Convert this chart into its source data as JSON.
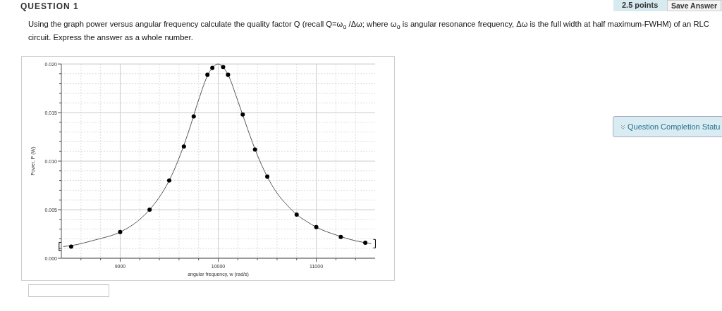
{
  "chart_data": {
    "type": "scatter",
    "title": "Using the graph power versus angular frequency calculate the quality factor Q (recall Q=ω$_{o}$ /Δω; where ω$_{o}$ is angular resonance  frequency, Δω is the full width at half maximum-FWHM) of an RLC circuit. Express the answer as a whole number.",
    "annotations": [
      "QUESTION 1",
      "2.5 points",
      "Save Answer",
      "Question Completion Statu"
    ],
    "xlabel": "angular frequency, w (rad/s)",
    "ylabel": "Power, P (W)",
    "xlim": [
      8400,
      11600
    ],
    "xticks": [
      {
        "value": 8600,
        "label": null
      },
      {
        "value": 8800,
        "label": null
      },
      9000,
      {
        "value": 9200,
        "label": null
      },
      {
        "value": 9400,
        "label": null
      },
      {
        "value": 9600,
        "label": null
      },
      {
        "value": 9800,
        "label": null
      },
      10000,
      {
        "value": 10200,
        "label": null
      },
      {
        "value": 10400,
        "label": null
      },
      {
        "value": 10600,
        "label": null
      },
      {
        "value": 10800,
        "label": null
      },
      11000,
      {
        "value": 11200,
        "label": null
      },
      {
        "value": 11400,
        "label": null
      }
    ],
    "ylim": [
      0,
      0.02
    ],
    "yticks": [
      {
        "value": 0,
        "label": "0.000"
      },
      {
        "value": 0.001,
        "label": null
      },
      {
        "value": 0.002,
        "label": null
      },
      {
        "value": 0.003,
        "label": null
      },
      {
        "value": 0.004,
        "label": null
      },
      {
        "value": 0.005,
        "label": "0.005"
      },
      {
        "value": 0.006,
        "label": null
      },
      {
        "value": 0.007,
        "label": null
      },
      {
        "value": 0.008,
        "label": null
      },
      {
        "value": 0.009,
        "label": null
      },
      {
        "value": 0.01,
        "label": "0.010"
      },
      {
        "value": 0.011,
        "label": null
      },
      {
        "value": 0.012,
        "label": null
      },
      {
        "value": 0.013,
        "label": null
      },
      {
        "value": 0.014,
        "label": null
      },
      {
        "value": 0.015,
        "label": "0.015"
      },
      {
        "value": 0.016,
        "label": null
      },
      {
        "value": 0.017,
        "label": null
      },
      {
        "value": 0.018,
        "label": null
      },
      {
        "value": 0.019,
        "label": null
      },
      {
        "value": 0.02,
        "label": "0.020"
      }
    ],
    "grid": true,
    "series": [
      {
        "type": "line",
        "color": "#555555",
        "marker": "none",
        "x": [
          8420,
          8500,
          8750,
          9000,
          9200,
          9300,
          9400,
          9500,
          9600,
          9700,
          9800,
          9900,
          10000,
          10100,
          10200,
          10300,
          10400,
          10500,
          10600,
          10700,
          10800,
          10900,
          11000,
          11200,
          11400,
          11560
        ],
        "values": [
          0.0012,
          0.0013,
          0.0019,
          0.0027,
          0.004,
          0.005,
          0.0063,
          0.008,
          0.0103,
          0.0131,
          0.0163,
          0.019,
          0.02,
          0.0189,
          0.0162,
          0.0133,
          0.0106,
          0.0084,
          0.0067,
          0.0055,
          0.0045,
          0.0038,
          0.0032,
          0.0024,
          0.0018,
          0.0015
        ]
      },
      {
        "color": "#000000",
        "marker": "circle",
        "x": [
          8500,
          9000,
          9300,
          9500,
          9650,
          9750,
          9890,
          9940,
          10050,
          10100,
          10250,
          10375,
          10500,
          10800,
          11000,
          11250,
          11500
        ],
        "values": [
          0.0012,
          0.0027,
          0.005,
          0.008,
          0.0115,
          0.0146,
          0.0189,
          0.0196,
          0.0197,
          0.0189,
          0.0148,
          0.0112,
          0.0084,
          0.0045,
          0.0032,
          0.0022,
          0.0016
        ]
      }
    ]
  }
}
